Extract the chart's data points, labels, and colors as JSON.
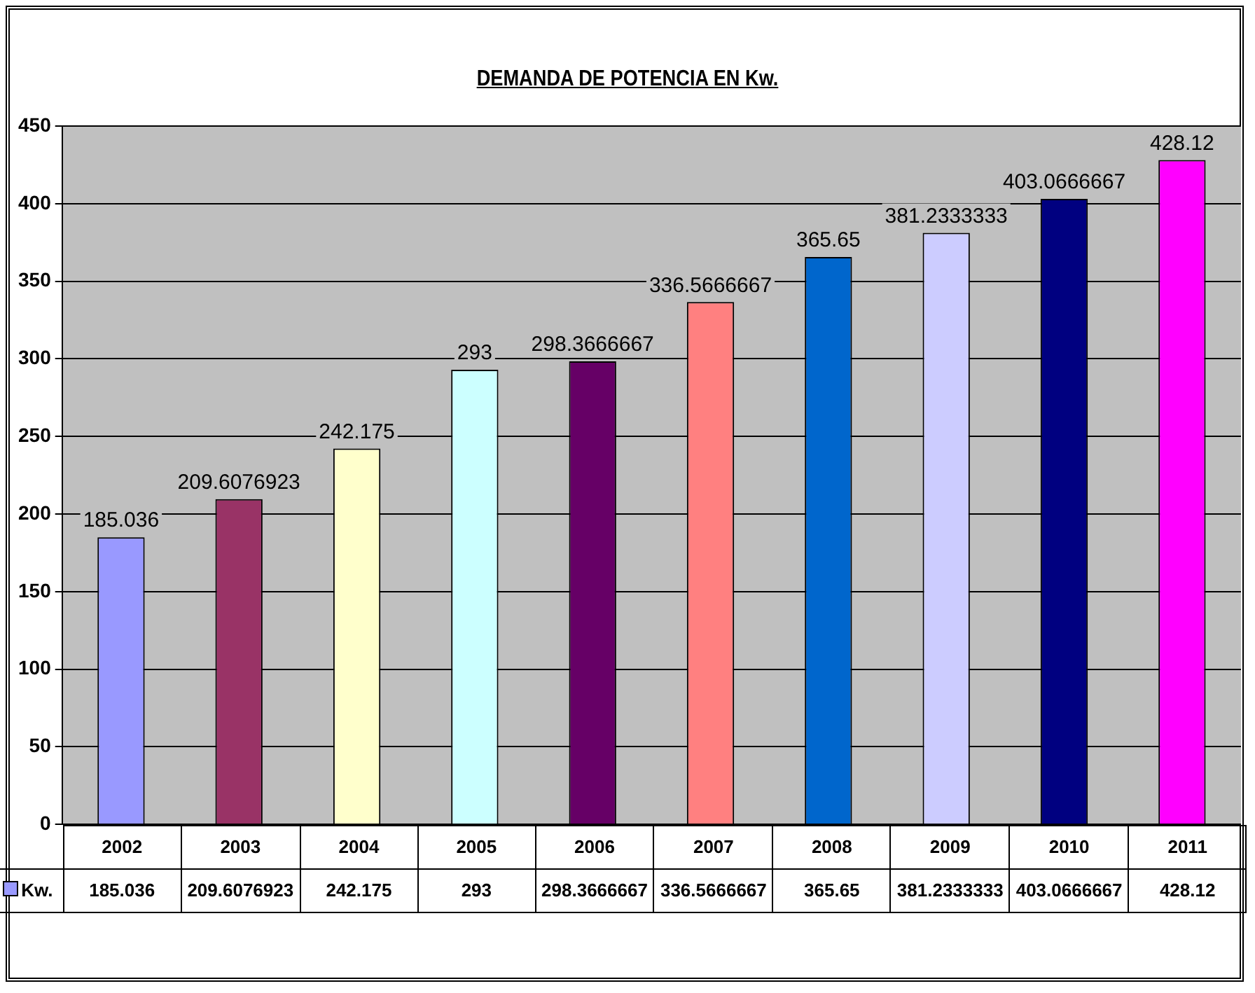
{
  "chart_data": {
    "type": "bar",
    "title": "DEMANDA DE POTENCIA EN Kw.",
    "categories": [
      "2002",
      "2003",
      "2004",
      "2005",
      "2006",
      "2007",
      "2008",
      "2009",
      "2010",
      "2011"
    ],
    "series": [
      {
        "name": "Kw.",
        "colors": [
          "#9999ff",
          "#993366",
          "#ffffcc",
          "#ccffff",
          "#660066",
          "#ff8080",
          "#0066cc",
          "#ccccff",
          "#000080",
          "#ff00ff"
        ],
        "values": [
          185.036,
          209.6076923,
          242.175,
          293,
          298.3666667,
          336.5666667,
          365.65,
          381.2333333,
          403.0666667,
          428.12
        ],
        "value_labels": [
          "185.036",
          "209.6076923",
          "242.175",
          "293",
          "298.3666667",
          "336.5666667",
          "365.65",
          "381.2333333",
          "403.0666667",
          "428.12"
        ]
      }
    ],
    "ylim": [
      0,
      450
    ],
    "yticks": [
      0,
      50,
      100,
      150,
      200,
      250,
      300,
      350,
      400,
      450
    ],
    "grid": "y",
    "legend": "bottom",
    "tick_labels": "y"
  }
}
